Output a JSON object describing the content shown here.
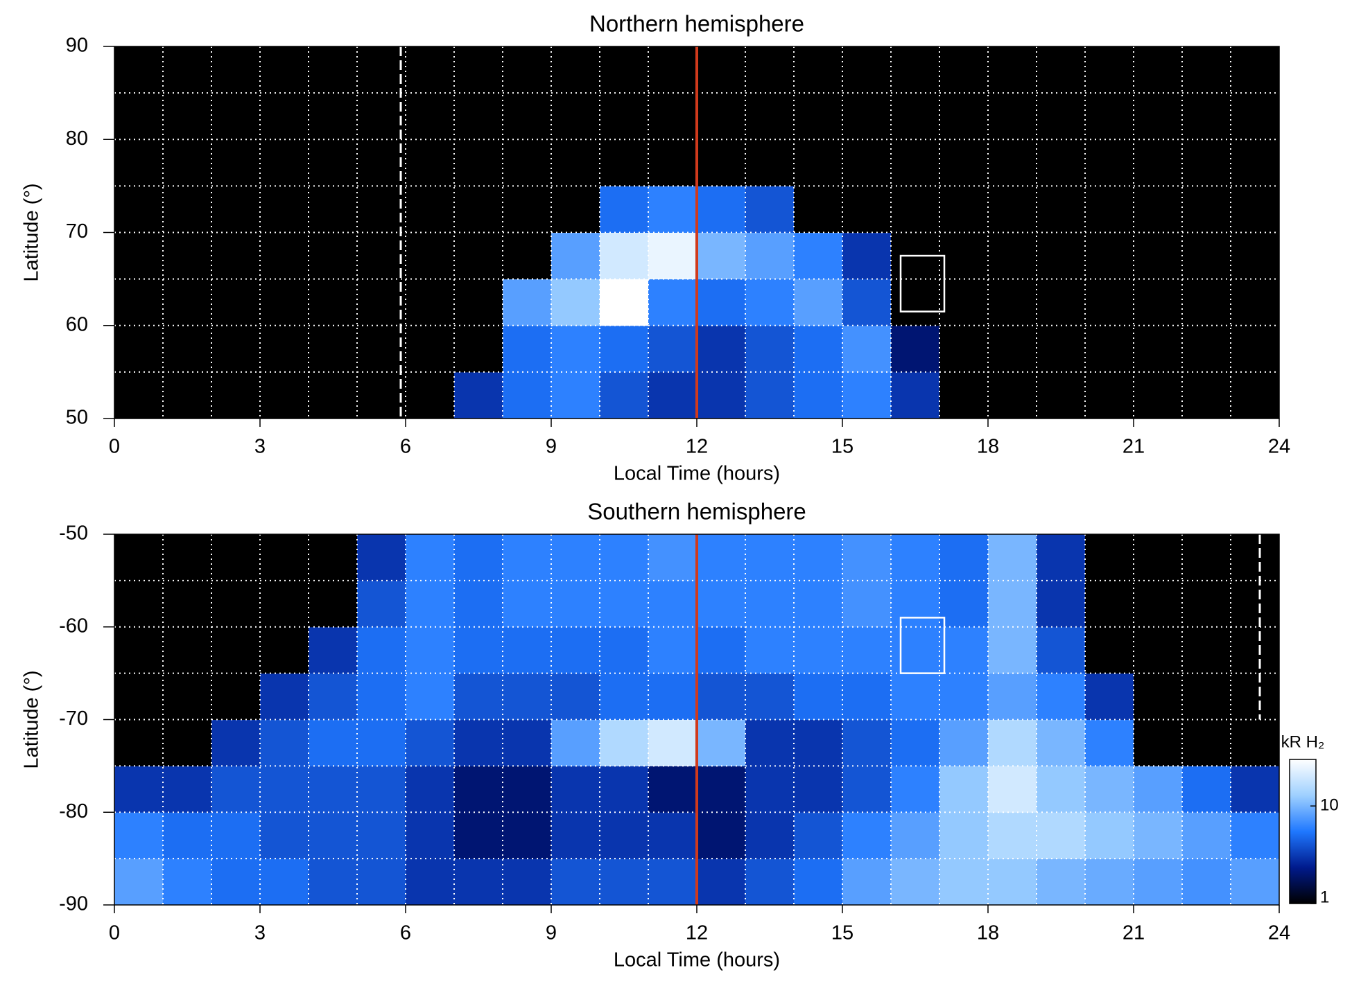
{
  "chart_data": [
    {
      "type": "heatmap",
      "title": "Northern hemisphere",
      "x_label": "Local Time (hours)",
      "y_label": "Latitude (°)",
      "xlim": [
        0,
        24
      ],
      "xticks": [
        0,
        3,
        6,
        9,
        12,
        15,
        18,
        21,
        24
      ],
      "ylim": [
        50,
        90
      ],
      "yticks": [
        50,
        60,
        70,
        80,
        90
      ],
      "xgrid": [
        1,
        2,
        3,
        4,
        5,
        6,
        7,
        8,
        9,
        10,
        11,
        12,
        13,
        14,
        15,
        16,
        17,
        18,
        19,
        20,
        21,
        22,
        23
      ],
      "ygrid": [
        55,
        60,
        65,
        70,
        75,
        80,
        85
      ],
      "clim": [
        1,
        30
      ],
      "colorscale": [
        "#000000",
        "#001a8c",
        "#1f78ff",
        "#9ed0ff",
        "#ffffff"
      ],
      "z": [
        [
          0,
          0,
          0,
          0,
          0,
          0,
          0,
          3,
          5,
          6,
          4,
          3,
          3,
          4,
          5,
          6,
          3,
          0,
          0,
          0,
          0,
          0,
          0,
          0
        ],
        [
          0,
          0,
          0,
          0,
          0,
          0,
          0,
          0,
          5,
          6,
          5,
          4,
          3,
          4,
          5,
          7,
          2,
          0,
          0,
          0,
          0,
          0,
          0,
          0
        ],
        [
          0,
          0,
          0,
          0,
          0,
          0,
          0,
          0,
          8,
          12,
          30,
          6,
          5,
          6,
          8,
          4,
          0,
          0,
          0,
          0,
          0,
          0,
          0,
          0
        ],
        [
          0,
          0,
          0,
          0,
          0,
          0,
          0,
          0,
          0,
          8,
          20,
          25,
          10,
          8,
          6,
          3,
          0,
          0,
          0,
          0,
          0,
          0,
          0,
          0
        ],
        [
          0,
          0,
          0,
          0,
          0,
          0,
          0,
          0,
          0,
          0,
          5,
          6,
          5,
          4,
          0,
          0,
          0,
          0,
          0,
          0,
          0,
          0,
          0,
          0
        ],
        [
          0,
          0,
          0,
          0,
          0,
          0,
          0,
          0,
          0,
          0,
          0,
          0,
          0,
          0,
          0,
          0,
          0,
          0,
          0,
          0,
          0,
          0,
          0,
          0
        ],
        [
          0,
          0,
          0,
          0,
          0,
          0,
          0,
          0,
          0,
          0,
          0,
          0,
          0,
          0,
          0,
          0,
          0,
          0,
          0,
          0,
          0,
          0,
          0,
          0
        ],
        [
          0,
          0,
          0,
          0,
          0,
          0,
          0,
          0,
          0,
          0,
          0,
          0,
          0,
          0,
          0,
          0,
          0,
          0,
          0,
          0,
          0,
          0,
          0,
          0
        ]
      ],
      "reference_lines": [
        {
          "x": 12,
          "color": "#d03a1c",
          "style": "solid",
          "y": [
            50,
            90
          ]
        },
        {
          "x": 5.9,
          "color": "#ffffff",
          "style": "dashed",
          "y": [
            50,
            90
          ]
        }
      ],
      "box": {
        "x": [
          16.2,
          17.1
        ],
        "y": [
          61.5,
          67.5
        ],
        "color": "#ffffff"
      }
    },
    {
      "type": "heatmap",
      "title": "Southern hemisphere",
      "x_label": "Local Time (hours)",
      "y_label": "Latitude (°)",
      "xlim": [
        0,
        24
      ],
      "xticks": [
        0,
        3,
        6,
        9,
        12,
        15,
        18,
        21,
        24
      ],
      "ylim": [
        -90,
        -50
      ],
      "yticks": [
        -90,
        -80,
        -70,
        -60,
        -50
      ],
      "xgrid": [
        1,
        2,
        3,
        4,
        5,
        6,
        7,
        8,
        9,
        10,
        11,
        12,
        13,
        14,
        15,
        16,
        17,
        18,
        19,
        20,
        21,
        22,
        23
      ],
      "ygrid": [
        -85,
        -80,
        -75,
        -70,
        -65,
        -60,
        -55
      ],
      "clim": [
        1,
        30
      ],
      "colorscale": [
        "#000000",
        "#001a8c",
        "#1f78ff",
        "#9ed0ff",
        "#ffffff"
      ],
      "z": [
        [
          8,
          6,
          5,
          5,
          4,
          4,
          3,
          3,
          3,
          4,
          4,
          4,
          3,
          4,
          5,
          8,
          10,
          12,
          12,
          10,
          9,
          8,
          7,
          8
        ],
        [
          6,
          5,
          5,
          4,
          4,
          4,
          3,
          2,
          2,
          3,
          3,
          3,
          2,
          3,
          4,
          6,
          8,
          12,
          15,
          15,
          12,
          10,
          8,
          6
        ],
        [
          3,
          3,
          4,
          4,
          4,
          4,
          3,
          2,
          2,
          3,
          3,
          2,
          2,
          3,
          3,
          4,
          6,
          12,
          20,
          12,
          10,
          8,
          5,
          3
        ],
        [
          0,
          0,
          3,
          4,
          5,
          5,
          4,
          3,
          3,
          8,
          15,
          20,
          10,
          3,
          3,
          4,
          5,
          8,
          15,
          10,
          6,
          0,
          0,
          0
        ],
        [
          0,
          0,
          0,
          3,
          4,
          5,
          6,
          4,
          4,
          4,
          5,
          5,
          4,
          4,
          5,
          5,
          6,
          6,
          8,
          6,
          3,
          0,
          0,
          0
        ],
        [
          0,
          0,
          0,
          0,
          3,
          5,
          6,
          5,
          5,
          5,
          5,
          6,
          5,
          6,
          6,
          6,
          6,
          6,
          10,
          4,
          0,
          0,
          0,
          0
        ],
        [
          0,
          0,
          0,
          0,
          0,
          4,
          6,
          5,
          6,
          6,
          6,
          6,
          6,
          6,
          6,
          7,
          6,
          5,
          10,
          3,
          0,
          0,
          0,
          0
        ],
        [
          0,
          0,
          0,
          0,
          0,
          3,
          6,
          5,
          6,
          6,
          6,
          7,
          6,
          6,
          6,
          7,
          6,
          5,
          10,
          3,
          0,
          0,
          0,
          0
        ]
      ],
      "reference_lines": [
        {
          "x": 12,
          "color": "#d03a1c",
          "style": "solid",
          "y": [
            -90,
            -50
          ]
        },
        {
          "x": 23.6,
          "color": "#ffffff",
          "style": "dashed",
          "y": [
            -70,
            -50
          ]
        }
      ],
      "box": {
        "x": [
          16.2,
          17.1
        ],
        "y": [
          -65,
          -59
        ],
        "color": "#ffffff"
      },
      "colorbar": {
        "label": "kR H₂",
        "log": true,
        "ticks": [
          1,
          10
        ]
      }
    }
  ]
}
